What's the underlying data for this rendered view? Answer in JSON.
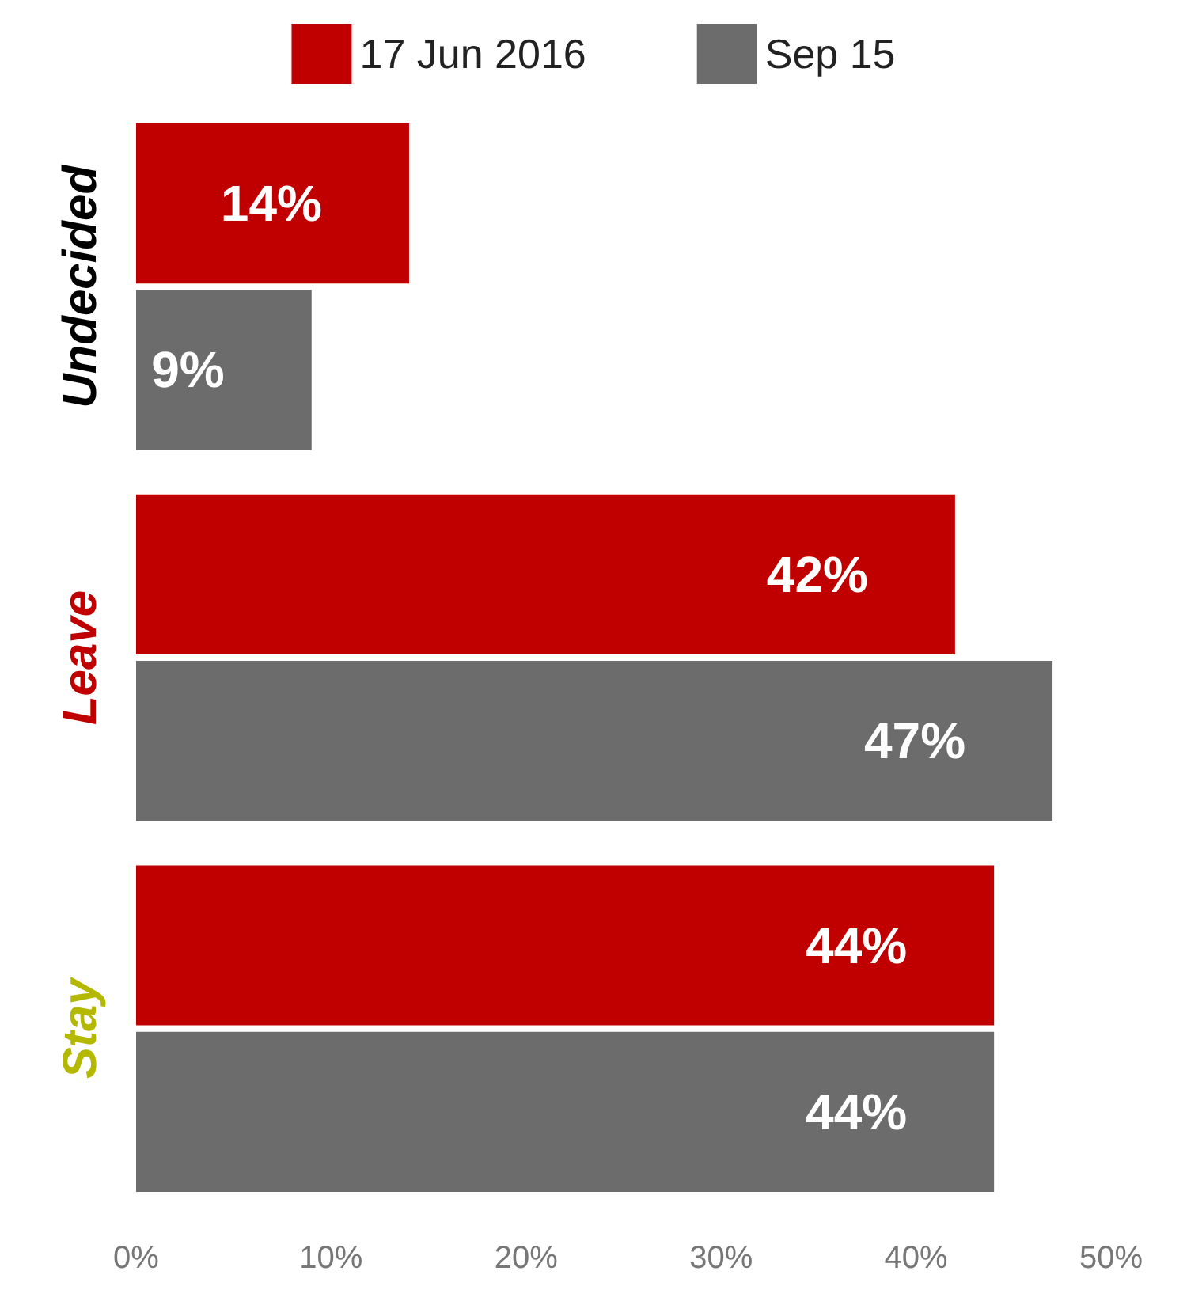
{
  "chart_data": {
    "type": "bar",
    "orientation": "horizontal",
    "categories": [
      "Undecided",
      "Leave",
      "Stay"
    ],
    "series": [
      {
        "name": "17 Jun 2016",
        "color": "#c00000",
        "values": [
          14,
          42,
          44
        ],
        "value_labels": [
          "14%",
          "42%",
          "44%"
        ]
      },
      {
        "name": "Sep 15",
        "color": "#6b6c6b",
        "values": [
          9,
          47,
          44
        ],
        "value_labels": [
          "9%",
          "47%",
          "44%"
        ]
      }
    ],
    "xlim": [
      0,
      50
    ],
    "xticks": [
      {
        "value": 0,
        "label": "0%"
      },
      {
        "value": 10,
        "label": "10%"
      },
      {
        "value": 20,
        "label": "20%"
      },
      {
        "value": 30,
        "label": "30%"
      },
      {
        "value": 40,
        "label": "40%"
      },
      {
        "value": 50,
        "label": "50%"
      }
    ],
    "grid": false,
    "legend": "top"
  }
}
